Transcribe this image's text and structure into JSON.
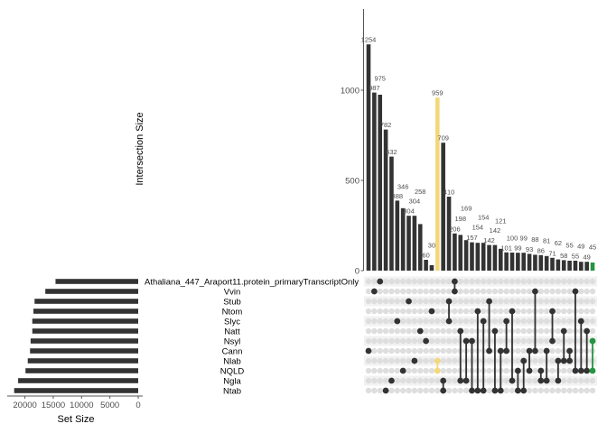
{
  "chart_data": {
    "type": "bar",
    "subtype": "upset",
    "ylabel": "Intersection Size",
    "yticks": [
      "0",
      "500",
      "1000"
    ],
    "ytick_values": [
      0,
      500,
      1000
    ],
    "ylim": [
      0,
      1400
    ],
    "set_size_label": "Set Size",
    "set_size_ticks": [
      "20000",
      "15000",
      "10000",
      "5000",
      "0"
    ],
    "set_size_tick_values": [
      20000,
      15000,
      10000,
      5000,
      0
    ],
    "sets": [
      "Athaliana_447_Araport11.protein_primaryTranscriptOnly",
      "Vvin",
      "Stub",
      "Ntom",
      "Slyc",
      "Natt",
      "Nsyl",
      "Cann",
      "Nlab",
      "NQLD",
      "Ngla",
      "Ntab"
    ],
    "set_sizes": [
      14600,
      16400,
      18300,
      18500,
      18700,
      18700,
      19000,
      19100,
      19500,
      19900,
      21200,
      21900
    ],
    "intersections": [
      {
        "value": 1254,
        "sets": [
          7
        ]
      },
      {
        "value": 987,
        "sets": [
          1
        ]
      },
      {
        "value": 975,
        "sets": [
          0
        ]
      },
      {
        "value": 782,
        "sets": [
          11
        ]
      },
      {
        "value": 632,
        "sets": [
          10
        ]
      },
      {
        "value": 388,
        "sets": [
          4
        ]
      },
      {
        "value": 346,
        "sets": [
          9
        ]
      },
      {
        "value": 304,
        "sets": [
          2
        ]
      },
      {
        "value": 304,
        "sets": [
          8
        ]
      },
      {
        "value": 258,
        "sets": [
          5
        ]
      },
      {
        "value": 60,
        "sets": [
          6
        ]
      },
      {
        "value": 30,
        "sets": [
          3
        ]
      },
      {
        "value": 959,
        "sets": [
          8,
          9
        ],
        "color": "#F3D77B"
      },
      {
        "value": 709,
        "sets": [
          10,
          11
        ]
      },
      {
        "value": 410,
        "sets": [
          2,
          4
        ]
      },
      {
        "value": 206,
        "sets": [
          0,
          1
        ]
      },
      {
        "value": 198,
        "sets": [
          5,
          10
        ]
      },
      {
        "value": 169,
        "sets": [
          6,
          10
        ]
      },
      {
        "value": 157,
        "sets": [
          6,
          11
        ]
      },
      {
        "value": 154,
        "sets": [
          3,
          11
        ]
      },
      {
        "value": 154,
        "sets": [
          4,
          11
        ]
      },
      {
        "value": 142,
        "sets": [
          2,
          7
        ]
      },
      {
        "value": 142,
        "sets": [
          5,
          11
        ]
      },
      {
        "value": 121,
        "sets": [
          7,
          11
        ]
      },
      {
        "value": 101,
        "sets": [
          4,
          7
        ]
      },
      {
        "value": 100,
        "sets": [
          3,
          10
        ]
      },
      {
        "value": 99,
        "sets": [
          9,
          11
        ]
      },
      {
        "value": 99,
        "sets": [
          8,
          11
        ]
      },
      {
        "value": 93,
        "sets": [
          7,
          9
        ]
      },
      {
        "value": 88,
        "sets": [
          1,
          7
        ]
      },
      {
        "value": 86,
        "sets": [
          9,
          10
        ]
      },
      {
        "value": 81,
        "sets": [
          7,
          10
        ]
      },
      {
        "value": 71,
        "sets": [
          3,
          6
        ]
      },
      {
        "value": 62,
        "sets": [
          8,
          10
        ]
      },
      {
        "value": 58,
        "sets": [
          5,
          8
        ]
      },
      {
        "value": 55,
        "sets": [
          7,
          8
        ]
      },
      {
        "value": 55,
        "sets": [
          1,
          9
        ]
      },
      {
        "value": 49,
        "sets": [
          4,
          9
        ]
      },
      {
        "value": 49,
        "sets": [
          5,
          9
        ]
      },
      {
        "value": 45,
        "sets": [
          6,
          9
        ],
        "color": "#23953F"
      }
    ],
    "colors": {
      "bar": "#333333",
      "dot_empty": "#dedede",
      "band": "#f2f2f2",
      "axis": "#555555"
    }
  }
}
